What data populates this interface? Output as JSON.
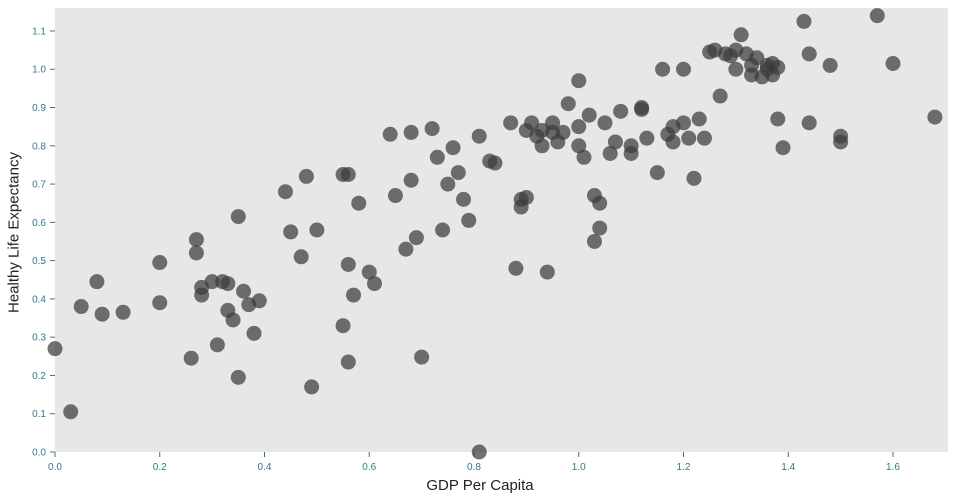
{
  "chart_data": {
    "type": "scatter",
    "title": "",
    "xlabel": "GDP Per Capita",
    "ylabel": "Healthy Life Expectancy",
    "xlim": [
      0,
      1.705
    ],
    "ylim": [
      0,
      1.16
    ],
    "x_ticks": [
      0.0,
      0.2,
      0.4,
      0.6,
      0.8,
      1.0,
      1.2,
      1.4,
      1.6
    ],
    "y_ticks": [
      0.0,
      0.1,
      0.2,
      0.3,
      0.4,
      0.5,
      0.6,
      0.7,
      0.8,
      0.9,
      1.0,
      1.1
    ],
    "grid": false,
    "legend": false,
    "marker": {
      "color": "#3b3b3b",
      "opacity": 0.72,
      "radius": 7.5
    },
    "colors": {
      "plot_bg": "#e7e7e7",
      "page_bg": "#ffffff",
      "tick_label": "#2f7a83",
      "axis_label": "#222222"
    },
    "points": [
      [
        0.0,
        0.27
      ],
      [
        0.03,
        0.105
      ],
      [
        0.05,
        0.38
      ],
      [
        0.08,
        0.445
      ],
      [
        0.09,
        0.36
      ],
      [
        0.13,
        0.365
      ],
      [
        0.2,
        0.495
      ],
      [
        0.2,
        0.39
      ],
      [
        0.26,
        0.245
      ],
      [
        0.27,
        0.555
      ],
      [
        0.27,
        0.52
      ],
      [
        0.28,
        0.43
      ],
      [
        0.28,
        0.41
      ],
      [
        0.3,
        0.445
      ],
      [
        0.31,
        0.28
      ],
      [
        0.32,
        0.445
      ],
      [
        0.33,
        0.44
      ],
      [
        0.33,
        0.37
      ],
      [
        0.34,
        0.345
      ],
      [
        0.35,
        0.615
      ],
      [
        0.35,
        0.195
      ],
      [
        0.36,
        0.42
      ],
      [
        0.37,
        0.385
      ],
      [
        0.38,
        0.31
      ],
      [
        0.39,
        0.395
      ],
      [
        0.44,
        0.68
      ],
      [
        0.45,
        0.575
      ],
      [
        0.47,
        0.51
      ],
      [
        0.48,
        0.72
      ],
      [
        0.49,
        0.17
      ],
      [
        0.5,
        0.58
      ],
      [
        0.55,
        0.725
      ],
      [
        0.56,
        0.725
      ],
      [
        0.55,
        0.33
      ],
      [
        0.56,
        0.49
      ],
      [
        0.56,
        0.235
      ],
      [
        0.57,
        0.41
      ],
      [
        0.58,
        0.65
      ],
      [
        0.6,
        0.47
      ],
      [
        0.61,
        0.44
      ],
      [
        0.64,
        0.83
      ],
      [
        0.65,
        0.67
      ],
      [
        0.67,
        0.53
      ],
      [
        0.68,
        0.835
      ],
      [
        0.68,
        0.71
      ],
      [
        0.69,
        0.56
      ],
      [
        0.7,
        0.248
      ],
      [
        0.72,
        0.845
      ],
      [
        0.73,
        0.77
      ],
      [
        0.74,
        0.58
      ],
      [
        0.75,
        0.7
      ],
      [
        0.76,
        0.795
      ],
      [
        0.77,
        0.73
      ],
      [
        0.78,
        0.66
      ],
      [
        0.79,
        0.605
      ],
      [
        0.81,
        0.825
      ],
      [
        0.81,
        0.0
      ],
      [
        0.83,
        0.76
      ],
      [
        0.84,
        0.755
      ],
      [
        0.87,
        0.86
      ],
      [
        0.88,
        0.48
      ],
      [
        0.89,
        0.64
      ],
      [
        0.89,
        0.66
      ],
      [
        0.9,
        0.665
      ],
      [
        0.9,
        0.84
      ],
      [
        0.91,
        0.86
      ],
      [
        0.92,
        0.825
      ],
      [
        0.93,
        0.84
      ],
      [
        0.93,
        0.8
      ],
      [
        0.94,
        0.47
      ],
      [
        0.95,
        0.86
      ],
      [
        0.95,
        0.835
      ],
      [
        0.96,
        0.81
      ],
      [
        0.97,
        0.835
      ],
      [
        0.98,
        0.91
      ],
      [
        1.0,
        0.97
      ],
      [
        1.0,
        0.85
      ],
      [
        1.0,
        0.8
      ],
      [
        1.01,
        0.77
      ],
      [
        1.02,
        0.88
      ],
      [
        1.03,
        0.67
      ],
      [
        1.03,
        0.55
      ],
      [
        1.04,
        0.585
      ],
      [
        1.04,
        0.65
      ],
      [
        1.05,
        0.86
      ],
      [
        1.06,
        0.78
      ],
      [
        1.07,
        0.81
      ],
      [
        1.08,
        0.89
      ],
      [
        1.1,
        0.8
      ],
      [
        1.1,
        0.78
      ],
      [
        1.12,
        0.9
      ],
      [
        1.12,
        0.895
      ],
      [
        1.13,
        0.82
      ],
      [
        1.15,
        0.73
      ],
      [
        1.16,
        1.0
      ],
      [
        1.17,
        0.83
      ],
      [
        1.18,
        0.85
      ],
      [
        1.18,
        0.81
      ],
      [
        1.2,
        1.0
      ],
      [
        1.2,
        0.86
      ],
      [
        1.21,
        0.82
      ],
      [
        1.22,
        0.715
      ],
      [
        1.23,
        0.87
      ],
      [
        1.24,
        0.82
      ],
      [
        1.25,
        1.045
      ],
      [
        1.26,
        1.05
      ],
      [
        1.27,
        0.93
      ],
      [
        1.28,
        1.04
      ],
      [
        1.29,
        1.035
      ],
      [
        1.3,
        1.05
      ],
      [
        1.3,
        1.0
      ],
      [
        1.31,
        1.09
      ],
      [
        1.32,
        1.04
      ],
      [
        1.33,
        1.01
      ],
      [
        1.33,
        0.985
      ],
      [
        1.34,
        1.03
      ],
      [
        1.35,
        0.98
      ],
      [
        1.36,
        1.0
      ],
      [
        1.36,
        1.01
      ],
      [
        1.37,
        1.015
      ],
      [
        1.37,
        0.985
      ],
      [
        1.38,
        1.005
      ],
      [
        1.38,
        0.87
      ],
      [
        1.39,
        0.795
      ],
      [
        1.43,
        1.125
      ],
      [
        1.44,
        1.04
      ],
      [
        1.44,
        0.86
      ],
      [
        1.48,
        1.01
      ],
      [
        1.5,
        0.825
      ],
      [
        1.5,
        0.81
      ],
      [
        1.57,
        1.14
      ],
      [
        1.6,
        1.015
      ],
      [
        1.68,
        0.875
      ]
    ]
  }
}
